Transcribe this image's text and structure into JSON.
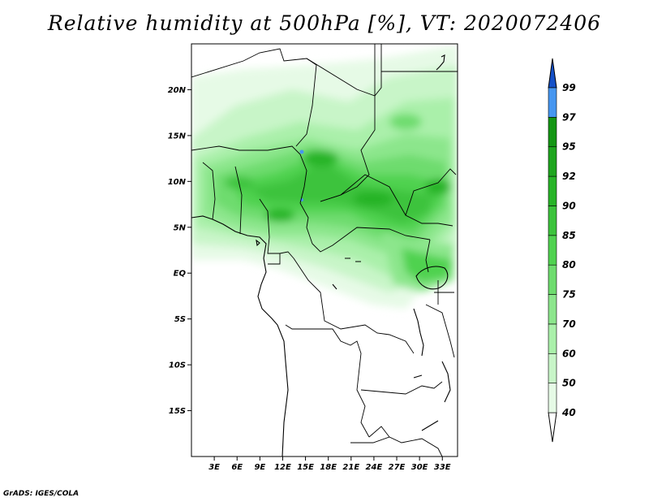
{
  "title": "Relative humidity at 500hPa [%], VT: 2020072406",
  "credit": "GrADS: IGES/COLA",
  "map": {
    "projection": "lat-lon",
    "lon_range": [
      0,
      35
    ],
    "lat_range": [
      -20,
      25
    ],
    "lat_ticks": [
      {
        "value": 20,
        "label": "20N"
      },
      {
        "value": 15,
        "label": "15N"
      },
      {
        "value": 10,
        "label": "10N"
      },
      {
        "value": 5,
        "label": "5N"
      },
      {
        "value": 0,
        "label": "EQ"
      },
      {
        "value": -5,
        "label": "5S"
      },
      {
        "value": -10,
        "label": "10S"
      },
      {
        "value": -15,
        "label": "15S"
      }
    ],
    "lon_ticks": [
      {
        "value": 3,
        "label": "3E"
      },
      {
        "value": 6,
        "label": "6E"
      },
      {
        "value": 9,
        "label": "9E"
      },
      {
        "value": 12,
        "label": "12E"
      },
      {
        "value": 15,
        "label": "15E"
      },
      {
        "value": 18,
        "label": "18E"
      },
      {
        "value": 21,
        "label": "21E"
      },
      {
        "value": 24,
        "label": "24E"
      },
      {
        "value": 27,
        "label": "27E"
      },
      {
        "value": 30,
        "label": "30E"
      },
      {
        "value": 33,
        "label": "33E"
      }
    ]
  },
  "colorbar": {
    "levels": [
      {
        "label": "40",
        "color": "#e6fae6"
      },
      {
        "label": "50",
        "color": "#c8f5c8"
      },
      {
        "label": "60",
        "color": "#aaf0aa"
      },
      {
        "label": "70",
        "color": "#8ce68c"
      },
      {
        "label": "75",
        "color": "#6edc6e"
      },
      {
        "label": "80",
        "color": "#50d250"
      },
      {
        "label": "85",
        "color": "#3cc33c"
      },
      {
        "label": "90",
        "color": "#28b428"
      },
      {
        "label": "92",
        "color": "#1ea51e"
      },
      {
        "label": "95",
        "color": "#149614"
      },
      {
        "label": "97",
        "color": "#4696f0"
      },
      {
        "label": "99",
        "color": "#1e6ee6"
      }
    ],
    "top_triangle_color": "#1450c8",
    "bottom_triangle_color": "#ffffff"
  }
}
